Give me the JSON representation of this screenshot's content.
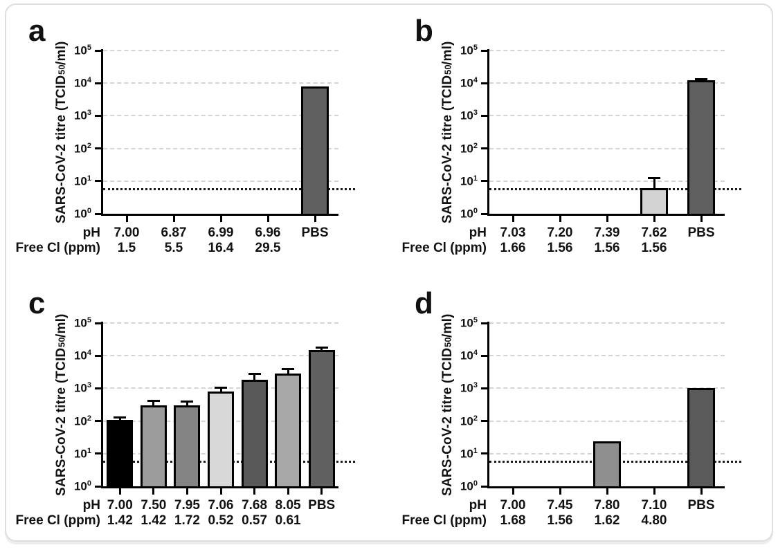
{
  "figure": {
    "background": "#ffffff",
    "card_border": "#dedede",
    "text_color": "#111111",
    "gridline_color": "#d4d4d4",
    "axis_color": "#000000",
    "ylabel": {
      "pre": "SARS-CoV-2 titre (TCID",
      "sub": "50",
      "post": "/ml)"
    },
    "ytick_base": "10",
    "ytick_exponents": [
      5,
      4,
      3,
      2,
      1,
      0
    ]
  },
  "chart_data": [
    {
      "panel_label": "a",
      "type": "bar",
      "yscale": "log10",
      "ylim": [
        1,
        100000
      ],
      "grid": "horizontal-dashed",
      "legend": false,
      "detection_limit": 5.6,
      "ylabel": "SARS-CoV-2 titre (TCID50/ml)",
      "row_labels": [
        "pH",
        "Free Cl (ppm)"
      ],
      "categories": [
        "7.00",
        "6.87",
        "6.99",
        "6.96",
        "PBS"
      ],
      "free_cl": [
        "1.5",
        "5.5",
        "16.4",
        "29.5",
        ""
      ],
      "series": [
        {
          "name": "titre",
          "values": [
            null,
            null,
            null,
            null,
            8000
          ],
          "errors_upper": [
            null,
            null,
            null,
            null,
            null
          ],
          "colors": [
            null,
            null,
            null,
            null,
            "#5f5f5f"
          ]
        }
      ]
    },
    {
      "panel_label": "b",
      "type": "bar",
      "yscale": "log10",
      "ylim": [
        1,
        100000
      ],
      "grid": "horizontal-dashed",
      "legend": false,
      "detection_limit": 5.6,
      "ylabel": "SARS-CoV-2 titre (TCID50/ml)",
      "row_labels": [
        "pH",
        "Free Cl (ppm)"
      ],
      "categories": [
        "7.03",
        "7.20",
        "7.39",
        "7.62",
        "PBS"
      ],
      "free_cl": [
        "1.66",
        "1.56",
        "1.56",
        "1.56",
        ""
      ],
      "series": [
        {
          "name": "titre",
          "values": [
            null,
            null,
            null,
            6,
            12000
          ],
          "errors_upper": [
            null,
            null,
            null,
            13,
            14000
          ],
          "colors": [
            null,
            null,
            null,
            "#d3d3d3",
            "#5f5f5f"
          ]
        }
      ]
    },
    {
      "panel_label": "c",
      "type": "bar",
      "yscale": "log10",
      "ylim": [
        1,
        100000
      ],
      "grid": "horizontal-dashed",
      "legend": false,
      "detection_limit": 5.6,
      "ylabel": "SARS-CoV-2 titre (TCID50/ml)",
      "row_labels": [
        "pH",
        "Free Cl (ppm)"
      ],
      "categories": [
        "7.00",
        "7.50",
        "7.95",
        "7.06",
        "7.68",
        "8.05",
        "PBS"
      ],
      "free_cl": [
        "1.42",
        "1.42",
        "1.72",
        "0.52",
        "0.57",
        "0.61",
        ""
      ],
      "series": [
        {
          "name": "titre",
          "values": [
            110,
            300,
            300,
            800,
            1800,
            2800,
            15000
          ],
          "errors_upper": [
            140,
            450,
            430,
            1150,
            3000,
            4300,
            19000
          ],
          "colors": [
            "#000000",
            "#9c9c9c",
            "#848484",
            "#d8d8d8",
            "#595959",
            "#a8a8a8",
            "#606060"
          ]
        }
      ]
    },
    {
      "panel_label": "d",
      "type": "bar",
      "yscale": "log10",
      "ylim": [
        1,
        100000
      ],
      "grid": "horizontal-dashed",
      "legend": false,
      "detection_limit": 5.6,
      "ylabel": "SARS-CoV-2 titre (TCID50/ml)",
      "row_labels": [
        "pH",
        "Free Cl (ppm)"
      ],
      "categories": [
        "7.00",
        "7.45",
        "7.80",
        "7.10",
        "PBS"
      ],
      "free_cl": [
        "1.68",
        "1.56",
        "1.62",
        "4.80",
        ""
      ],
      "series": [
        {
          "name": "titre",
          "values": [
            null,
            null,
            24,
            null,
            1000
          ],
          "errors_upper": [
            null,
            null,
            null,
            null,
            null
          ],
          "colors": [
            null,
            null,
            "#8f8f8f",
            null,
            "#5a5a5a"
          ]
        }
      ]
    }
  ]
}
